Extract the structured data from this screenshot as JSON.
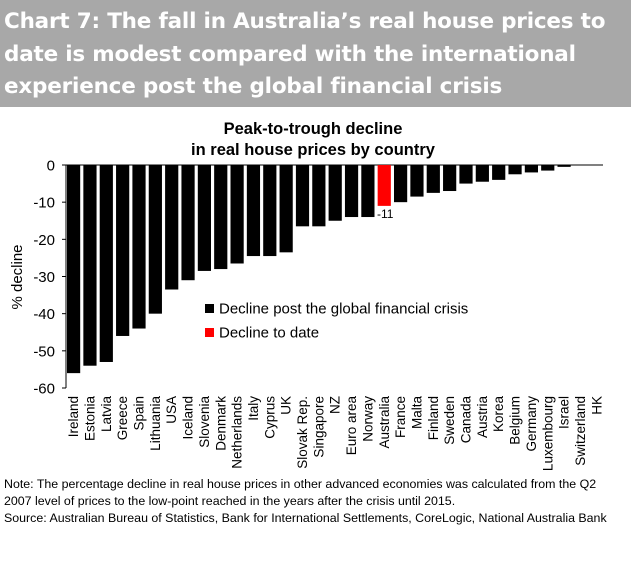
{
  "header": {
    "title": "Chart 7: The fall in Australia’s real house prices to date is modest compared with the international experience post the global financial crisis",
    "background": "#a8a8a8"
  },
  "chart_data": {
    "type": "bar",
    "title": "Peak-to-trough decline\nin real house prices by country",
    "xlabel": "",
    "ylabel": "% decline",
    "ylim": [
      -60,
      0
    ],
    "yticks": [
      0,
      -10,
      -20,
      -30,
      -40,
      -50,
      -60
    ],
    "grid": false,
    "categories": [
      "Ireland",
      "Estonia",
      "Latvia",
      "Greece",
      "Spain",
      "Lithuania",
      "USA",
      "Iceland",
      "Slovenia",
      "Denmark",
      "Netherlands",
      "Italy",
      "Cyprus",
      "UK",
      "Slovak Rep.",
      "Singapore",
      "NZ",
      "Euro area",
      "Norway",
      "Australia",
      "France",
      "Malta",
      "Finland",
      "Sweden",
      "Canada",
      "Austria",
      "Korea",
      "Belgium",
      "Germany",
      "Luxembourg",
      "Israel",
      "Switzerland",
      "HK"
    ],
    "values": [
      -56,
      -54,
      -53,
      -46,
      -44,
      -40,
      -33.5,
      -31,
      -28.5,
      -28,
      -26.5,
      -24.5,
      -24.5,
      -23.5,
      -16.5,
      -16.5,
      -15,
      -14,
      -14,
      -11,
      -10,
      -8.5,
      -7.5,
      -7,
      -5,
      -4.5,
      -4,
      -2.5,
      -2,
      -1.5,
      -0.5,
      0,
      0
    ],
    "highlight_index": 19,
    "series_colors": [
      "#000000",
      "#ff0000"
    ],
    "annotations": [
      {
        "category": "Australia",
        "text": "-11"
      }
    ],
    "legend": {
      "position": "center-right",
      "entries": [
        {
          "label": "Decline post the global financial crisis",
          "color": "#000000"
        },
        {
          "label": "Decline to date",
          "color": "#ff0000"
        }
      ]
    }
  },
  "note": {
    "text": "Note: The percentage decline in real house prices in other advanced economies was calculated from the Q2 2007 level of prices to the low-point reached in the years after the crisis until 2015.",
    "source": "Source: Australian Bureau of Statistics, Bank for International Settlements, CoreLogic, National Australia Bank"
  }
}
